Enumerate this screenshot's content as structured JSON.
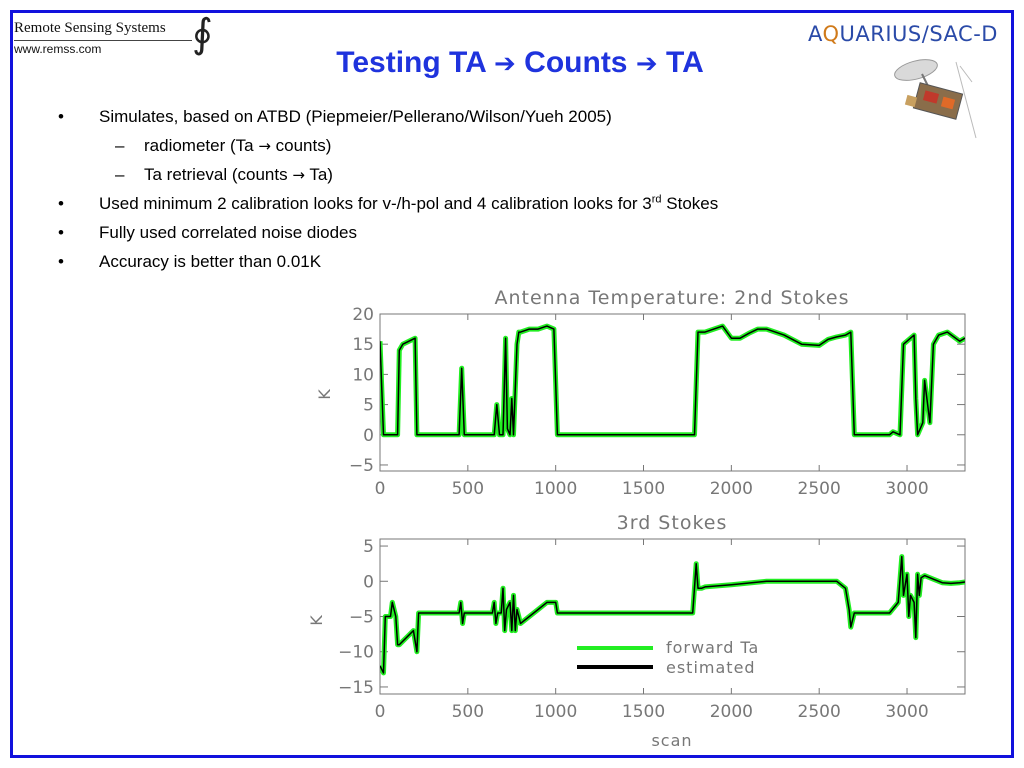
{
  "header": {
    "org_name": "Remote Sensing Systems",
    "org_url": "www.remss.com",
    "title_part1": "Testing TA",
    "title_part2": "Counts",
    "title_part3": "TA",
    "arrow_glyph": "➔",
    "mission_logo": {
      "part1": "A",
      "part2": "Q",
      "part3": "UARIUS/SAC-D"
    }
  },
  "bullets": [
    {
      "level": 1,
      "marker": "•",
      "text": "Simulates, based on ATBD (Piepmeier/Pellerano/Wilson/Yueh 2005)"
    },
    {
      "level": 2,
      "marker": "–",
      "text_a": "radiometer (Ta ",
      "arrow": "→",
      "text_b": " counts)"
    },
    {
      "level": 2,
      "marker": "–",
      "text_a": "Ta retrieval (counts ",
      "arrow": "→",
      "text_b": " Ta)"
    },
    {
      "level": 1,
      "marker": "•",
      "text_a": "Used minimum 2 calibration looks for v-/h-pol and 4 calibration looks for 3",
      "sup": "rd",
      "text_b": " Stokes"
    },
    {
      "level": 1,
      "marker": "•",
      "text": "Fully used correlated noise diodes"
    },
    {
      "level": 1,
      "marker": "•",
      "text": "Accuracy is better than 0.01K"
    }
  ],
  "colors": {
    "frame": "#1111dd",
    "title": "#1f33dd",
    "forward": "#22ee22",
    "estimated": "#000000",
    "axis": "#777777"
  },
  "chart_data": [
    {
      "type": "line",
      "title": "Antenna Temperature: 2nd Stokes",
      "xlabel": "",
      "ylabel": "K",
      "xlim": [
        0,
        3330
      ],
      "ylim": [
        -6,
        20
      ],
      "xticks": [
        0,
        500,
        1000,
        1500,
        2000,
        2500,
        3000
      ],
      "yticks": [
        -5,
        0,
        5,
        10,
        15,
        20
      ],
      "tick_labels_x": [
        "0",
        "500",
        "1000",
        "1500",
        "2000",
        "2500",
        "3000"
      ],
      "tick_labels_y": [
        "−5",
        "0",
        "5",
        "10",
        "15",
        "20"
      ],
      "grid": false,
      "series": [
        {
          "name": "forward Ta",
          "color": "#22ee22",
          "x": [
            0,
            20,
            30,
            100,
            110,
            130,
            200,
            210,
            230,
            450,
            465,
            480,
            490,
            650,
            665,
            680,
            700,
            715,
            725,
            740,
            750,
            760,
            780,
            790,
            800,
            850,
            900,
            950,
            990,
            1010,
            1050,
            1100,
            1500,
            1790,
            1810,
            1830,
            1850,
            1900,
            1950,
            2000,
            2050,
            2100,
            2150,
            2200,
            2300,
            2400,
            2500,
            2550,
            2600,
            2650,
            2680,
            2700,
            2800,
            2900,
            2920,
            2960,
            2980,
            3000,
            3040,
            3050,
            3060,
            3090,
            3100,
            3130,
            3150,
            3180,
            3230,
            3300,
            3330
          ],
          "y": [
            15.5,
            0,
            0,
            0,
            14,
            15,
            16,
            0,
            0,
            0,
            11,
            0,
            0,
            0,
            5,
            0,
            0,
            16,
            1,
            0,
            6,
            0,
            15,
            17,
            17,
            17.5,
            17.5,
            18,
            17.5,
            0,
            0,
            0,
            0,
            0,
            17,
            17,
            17,
            17.5,
            18,
            16,
            16,
            16.8,
            17.5,
            17.5,
            16.5,
            15,
            14.8,
            15.8,
            16.2,
            16.5,
            17,
            0,
            0,
            0,
            0.5,
            0,
            15,
            15.5,
            16.5,
            6,
            0,
            2,
            9,
            2,
            15,
            16.5,
            17,
            15.5,
            16
          ]
        },
        {
          "name": "estimated",
          "color": "#000000",
          "x": [
            0,
            20,
            30,
            100,
            110,
            130,
            200,
            210,
            230,
            450,
            465,
            480,
            490,
            650,
            665,
            680,
            700,
            715,
            725,
            740,
            750,
            760,
            780,
            790,
            800,
            850,
            900,
            950,
            990,
            1010,
            1050,
            1100,
            1500,
            1790,
            1810,
            1830,
            1850,
            1900,
            1950,
            2000,
            2050,
            2100,
            2150,
            2200,
            2300,
            2400,
            2500,
            2550,
            2600,
            2650,
            2680,
            2700,
            2800,
            2900,
            2920,
            2960,
            2980,
            3000,
            3040,
            3050,
            3060,
            3090,
            3100,
            3130,
            3150,
            3180,
            3230,
            3300,
            3330
          ],
          "y": [
            15.5,
            0,
            0,
            0,
            14,
            15,
            16,
            0,
            0,
            0,
            11,
            0,
            0,
            0,
            5,
            0,
            0,
            16,
            1,
            0,
            6,
            0,
            15,
            17,
            17,
            17.5,
            17.5,
            18,
            17.5,
            0,
            0,
            0,
            0,
            0,
            17,
            17,
            17,
            17.5,
            18,
            16,
            16,
            16.8,
            17.5,
            17.5,
            16.5,
            15,
            14.8,
            15.8,
            16.2,
            16.5,
            17,
            0,
            0,
            0,
            0.5,
            0,
            15,
            15.5,
            16.5,
            6,
            0,
            2,
            9,
            2,
            15,
            16.5,
            17,
            15.5,
            16
          ]
        }
      ]
    },
    {
      "type": "line",
      "title": "3rd Stokes",
      "xlabel": "scan",
      "ylabel": "K",
      "xlim": [
        0,
        3330
      ],
      "ylim": [
        -16,
        6
      ],
      "xticks": [
        0,
        500,
        1000,
        1500,
        2000,
        2500,
        3000
      ],
      "yticks": [
        -15,
        -10,
        -5,
        0,
        5
      ],
      "tick_labels_x": [
        "0",
        "500",
        "1000",
        "1500",
        "2000",
        "2500",
        "3000"
      ],
      "tick_labels_y": [
        "−15",
        "−10",
        "−5",
        "0",
        "5"
      ],
      "grid": false,
      "legend_position": "lower-center",
      "series": [
        {
          "name": "forward Ta",
          "color": "#22ee22",
          "x": [
            0,
            20,
            30,
            60,
            70,
            90,
            100,
            110,
            150,
            190,
            210,
            220,
            450,
            460,
            470,
            480,
            640,
            650,
            660,
            670,
            690,
            700,
            710,
            720,
            740,
            750,
            760,
            770,
            780,
            790,
            800,
            850,
            900,
            950,
            1000,
            1010,
            1020,
            1500,
            1780,
            1800,
            1810,
            1830,
            1850,
            2000,
            2200,
            2400,
            2600,
            2650,
            2670,
            2680,
            2700,
            2900,
            2950,
            2970,
            2980,
            3000,
            3010,
            3020,
            3040,
            3050,
            3060,
            3070,
            3080,
            3100,
            3150,
            3200,
            3250,
            3300,
            3330
          ],
          "y": [
            -12,
            -13,
            -5,
            -5,
            -3,
            -5,
            -9,
            -9,
            -8,
            -7,
            -10,
            -4.5,
            -4.5,
            -3,
            -6,
            -4.5,
            -4.5,
            -3,
            -6,
            -4.5,
            -4.5,
            -1,
            -7,
            -4,
            -3,
            -7,
            -2,
            -7,
            -4,
            -5,
            -6,
            -5,
            -4,
            -3,
            -3,
            -4.5,
            -4.5,
            -4.5,
            -4.5,
            2.5,
            -1,
            -1,
            -0.8,
            -0.5,
            0,
            0,
            0,
            -1,
            -4,
            -6.5,
            -4.5,
            -4.5,
            -3,
            3.5,
            -2,
            1,
            -5,
            -2,
            -3,
            -8,
            1,
            -2,
            0.5,
            0.8,
            0.3,
            -0.2,
            -0.3,
            -0.2,
            -0.1
          ]
        },
        {
          "name": "estimated",
          "color": "#000000",
          "x": [
            0,
            20,
            30,
            60,
            70,
            90,
            100,
            110,
            150,
            190,
            210,
            220,
            450,
            460,
            470,
            480,
            640,
            650,
            660,
            670,
            690,
            700,
            710,
            720,
            740,
            750,
            760,
            770,
            780,
            790,
            800,
            850,
            900,
            950,
            1000,
            1010,
            1020,
            1500,
            1780,
            1800,
            1810,
            1830,
            1850,
            2000,
            2200,
            2400,
            2600,
            2650,
            2670,
            2680,
            2700,
            2900,
            2950,
            2970,
            2980,
            3000,
            3010,
            3020,
            3040,
            3050,
            3060,
            3070,
            3080,
            3100,
            3150,
            3200,
            3250,
            3300,
            3330
          ],
          "y": [
            -12,
            -13,
            -5,
            -5,
            -3,
            -5,
            -9,
            -9,
            -8,
            -7,
            -10,
            -4.5,
            -4.5,
            -3,
            -6,
            -4.5,
            -4.5,
            -3,
            -6,
            -4.5,
            -4.5,
            -1,
            -7,
            -4,
            -3,
            -7,
            -2,
            -7,
            -4,
            -5,
            -6,
            -5,
            -4,
            -3,
            -3,
            -4.5,
            -4.5,
            -4.5,
            -4.5,
            2.5,
            -1,
            -1,
            -0.8,
            -0.5,
            0,
            0,
            0,
            -1,
            -4,
            -6.5,
            -4.5,
            -4.5,
            -3,
            3.5,
            -2,
            1,
            -5,
            -2,
            -3,
            -8,
            1,
            -2,
            0.5,
            0.8,
            0.3,
            -0.2,
            -0.3,
            -0.2,
            -0.1
          ]
        }
      ]
    }
  ]
}
